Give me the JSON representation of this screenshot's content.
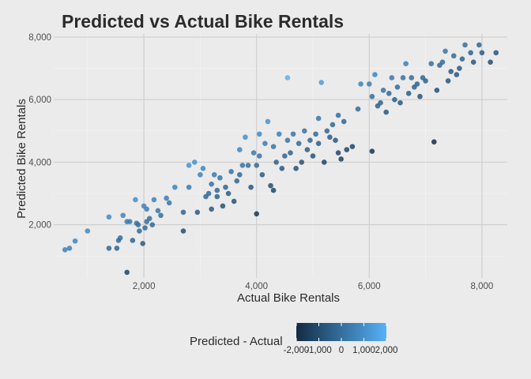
{
  "chart_data": {
    "type": "scatter",
    "title": "Predicted vs Actual Bike Rentals",
    "xlabel": "Actual Bike Rentals",
    "ylabel": "Predicted Bike Rentals",
    "xlim": [
      400,
      8450
    ],
    "ylim": [
      300,
      8100
    ],
    "x_ticks": [
      2000,
      4000,
      6000,
      8000
    ],
    "x_tick_labels": [
      "2,000",
      "4,000",
      "6,000",
      "8,000"
    ],
    "y_ticks": [
      2000,
      4000,
      6000,
      8000
    ],
    "y_tick_labels": [
      "2,000",
      "4,000",
      "6,000",
      "8,000"
    ],
    "grid": true,
    "legend": {
      "title": "Predicted - Actual",
      "position": "bottom",
      "type": "colorbar",
      "range": [
        -2000,
        2000
      ],
      "ticks": [
        -2000,
        -1000,
        0,
        1000,
        2000
      ],
      "tick_labels": [
        "-2,000",
        "-1,000",
        "0",
        "1,000",
        "2,000"
      ],
      "low_color": "#132b43",
      "high_color": "#56b1f7"
    },
    "points": [
      {
        "x": 600,
        "y": 1200
      },
      {
        "x": 680,
        "y": 1250
      },
      {
        "x": 780,
        "y": 1480
      },
      {
        "x": 1000,
        "y": 1800
      },
      {
        "x": 1380,
        "y": 1250
      },
      {
        "x": 1380,
        "y": 2250
      },
      {
        "x": 1520,
        "y": 1250
      },
      {
        "x": 1550,
        "y": 1500
      },
      {
        "x": 1580,
        "y": 1580
      },
      {
        "x": 1630,
        "y": 2300
      },
      {
        "x": 1700,
        "y": 480
      },
      {
        "x": 1700,
        "y": 2100
      },
      {
        "x": 1750,
        "y": 2100
      },
      {
        "x": 1800,
        "y": 1500
      },
      {
        "x": 1850,
        "y": 2800
      },
      {
        "x": 1870,
        "y": 2050
      },
      {
        "x": 1900,
        "y": 2000
      },
      {
        "x": 1920,
        "y": 1800
      },
      {
        "x": 1980,
        "y": 1400
      },
      {
        "x": 2000,
        "y": 2600
      },
      {
        "x": 2020,
        "y": 1900
      },
      {
        "x": 2050,
        "y": 2100
      },
      {
        "x": 2050,
        "y": 2500
      },
      {
        "x": 2100,
        "y": 2200
      },
      {
        "x": 2150,
        "y": 2000
      },
      {
        "x": 2180,
        "y": 2800
      },
      {
        "x": 2250,
        "y": 2450
      },
      {
        "x": 2300,
        "y": 2300
      },
      {
        "x": 2400,
        "y": 2850
      },
      {
        "x": 2450,
        "y": 2700
      },
      {
        "x": 2550,
        "y": 3200
      },
      {
        "x": 2700,
        "y": 1800
      },
      {
        "x": 2700,
        "y": 2400
      },
      {
        "x": 2800,
        "y": 3200
      },
      {
        "x": 2800,
        "y": 3900
      },
      {
        "x": 2900,
        "y": 4000
      },
      {
        "x": 2950,
        "y": 2400
      },
      {
        "x": 3000,
        "y": 3600
      },
      {
        "x": 3050,
        "y": 3800
      },
      {
        "x": 3100,
        "y": 2900
      },
      {
        "x": 3150,
        "y": 3000
      },
      {
        "x": 3200,
        "y": 2500
      },
      {
        "x": 3200,
        "y": 3300
      },
      {
        "x": 3250,
        "y": 3600
      },
      {
        "x": 3300,
        "y": 2900
      },
      {
        "x": 3300,
        "y": 3100
      },
      {
        "x": 3350,
        "y": 3500
      },
      {
        "x": 3400,
        "y": 2600
      },
      {
        "x": 3450,
        "y": 3200
      },
      {
        "x": 3500,
        "y": 3000
      },
      {
        "x": 3550,
        "y": 3700
      },
      {
        "x": 3600,
        "y": 2750
      },
      {
        "x": 3650,
        "y": 3400
      },
      {
        "x": 3700,
        "y": 3600
      },
      {
        "x": 3700,
        "y": 4400
      },
      {
        "x": 3750,
        "y": 3900
      },
      {
        "x": 3800,
        "y": 4800
      },
      {
        "x": 3850,
        "y": 3900
      },
      {
        "x": 3900,
        "y": 3200
      },
      {
        "x": 3950,
        "y": 4300
      },
      {
        "x": 4000,
        "y": 2350
      },
      {
        "x": 4000,
        "y": 3900
      },
      {
        "x": 4050,
        "y": 4200
      },
      {
        "x": 4050,
        "y": 4900
      },
      {
        "x": 4100,
        "y": 3600
      },
      {
        "x": 4150,
        "y": 4600
      },
      {
        "x": 4200,
        "y": 5300
      },
      {
        "x": 4250,
        "y": 3250
      },
      {
        "x": 4300,
        "y": 3100
      },
      {
        "x": 4300,
        "y": 4500
      },
      {
        "x": 4350,
        "y": 4000
      },
      {
        "x": 4400,
        "y": 4900
      },
      {
        "x": 4450,
        "y": 3800
      },
      {
        "x": 4500,
        "y": 4200
      },
      {
        "x": 4550,
        "y": 4700
      },
      {
        "x": 4550,
        "y": 6700
      },
      {
        "x": 4600,
        "y": 4300
      },
      {
        "x": 4650,
        "y": 4900
      },
      {
        "x": 4700,
        "y": 3800
      },
      {
        "x": 4750,
        "y": 4600
      },
      {
        "x": 4800,
        "y": 4000
      },
      {
        "x": 4850,
        "y": 5000
      },
      {
        "x": 4900,
        "y": 4400
      },
      {
        "x": 4950,
        "y": 4700
      },
      {
        "x": 5000,
        "y": 4200
      },
      {
        "x": 5050,
        "y": 4900
      },
      {
        "x": 5100,
        "y": 4600
      },
      {
        "x": 5100,
        "y": 5400
      },
      {
        "x": 5150,
        "y": 6550
      },
      {
        "x": 5200,
        "y": 4000
      },
      {
        "x": 5250,
        "y": 5000
      },
      {
        "x": 5300,
        "y": 4800
      },
      {
        "x": 5350,
        "y": 5200
      },
      {
        "x": 5400,
        "y": 4700
      },
      {
        "x": 5450,
        "y": 4300
      },
      {
        "x": 5450,
        "y": 5500
      },
      {
        "x": 5500,
        "y": 4100
      },
      {
        "x": 5550,
        "y": 5300
      },
      {
        "x": 5600,
        "y": 4400
      },
      {
        "x": 5700,
        "y": 4500
      },
      {
        "x": 5800,
        "y": 5700
      },
      {
        "x": 5850,
        "y": 6500
      },
      {
        "x": 6000,
        "y": 6500
      },
      {
        "x": 6050,
        "y": 4350
      },
      {
        "x": 6050,
        "y": 6100
      },
      {
        "x": 6100,
        "y": 6800
      },
      {
        "x": 6150,
        "y": 5800
      },
      {
        "x": 6200,
        "y": 5900
      },
      {
        "x": 6250,
        "y": 6300
      },
      {
        "x": 6300,
        "y": 5600
      },
      {
        "x": 6350,
        "y": 6200
      },
      {
        "x": 6400,
        "y": 6700
      },
      {
        "x": 6450,
        "y": 6000
      },
      {
        "x": 6500,
        "y": 6400
      },
      {
        "x": 6550,
        "y": 5900
      },
      {
        "x": 6600,
        "y": 6700
      },
      {
        "x": 6650,
        "y": 7150
      },
      {
        "x": 6700,
        "y": 6200
      },
      {
        "x": 6750,
        "y": 6700
      },
      {
        "x": 6800,
        "y": 6400
      },
      {
        "x": 6850,
        "y": 6500
      },
      {
        "x": 6900,
        "y": 6100
      },
      {
        "x": 6950,
        "y": 6700
      },
      {
        "x": 7000,
        "y": 6600
      },
      {
        "x": 7100,
        "y": 7150
      },
      {
        "x": 7150,
        "y": 4650
      },
      {
        "x": 7200,
        "y": 6300
      },
      {
        "x": 7250,
        "y": 7100
      },
      {
        "x": 7300,
        "y": 7200
      },
      {
        "x": 7350,
        "y": 7550
      },
      {
        "x": 7400,
        "y": 6600
      },
      {
        "x": 7450,
        "y": 6900
      },
      {
        "x": 7500,
        "y": 7400
      },
      {
        "x": 7550,
        "y": 6800
      },
      {
        "x": 7600,
        "y": 7000
      },
      {
        "x": 7650,
        "y": 7300
      },
      {
        "x": 7700,
        "y": 7750
      },
      {
        "x": 7800,
        "y": 7500
      },
      {
        "x": 7850,
        "y": 7200
      },
      {
        "x": 7950,
        "y": 7750
      },
      {
        "x": 8000,
        "y": 7500
      },
      {
        "x": 8150,
        "y": 7200
      },
      {
        "x": 8250,
        "y": 7500
      }
    ]
  }
}
